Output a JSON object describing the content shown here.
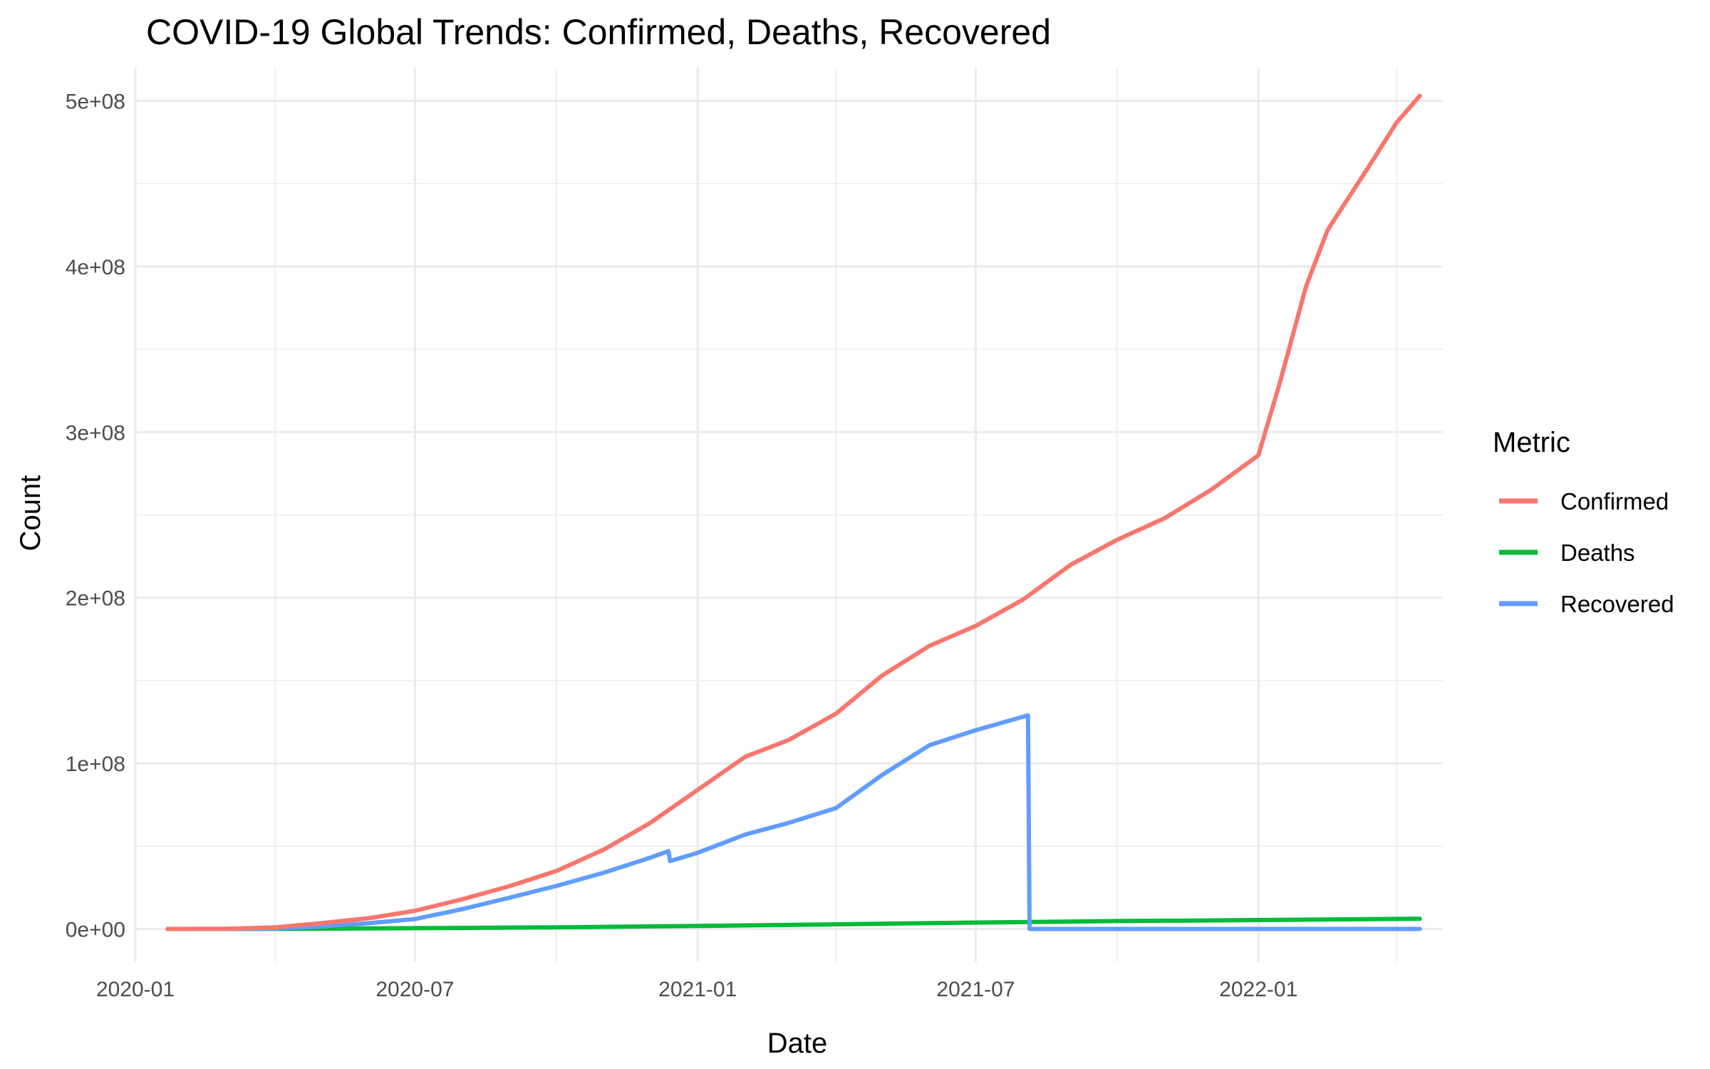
{
  "chart_data": {
    "type": "line",
    "title": "COVID-19 Global Trends: Confirmed, Deaths, Recovered",
    "xlabel": "Date",
    "ylabel": "Count",
    "x_type": "date",
    "xlim": [
      "2020-01-01",
      "2022-05-01"
    ],
    "ylim": [
      -20000000,
      520000000
    ],
    "x_ticks": [
      {
        "value": "2020-01-01",
        "label": "2020-01"
      },
      {
        "value": "2020-07-01",
        "label": "2020-07"
      },
      {
        "value": "2021-01-01",
        "label": "2021-01"
      },
      {
        "value": "2021-07-01",
        "label": "2021-07"
      },
      {
        "value": "2022-01-01",
        "label": "2022-01"
      }
    ],
    "x_minor_ticks": [
      "2020-04-01",
      "2020-10-01",
      "2021-04-01",
      "2021-10-01",
      "2022-04-01"
    ],
    "y_ticks": [
      {
        "value": 0,
        "label": "0e+00"
      },
      {
        "value": 100000000,
        "label": "1e+08"
      },
      {
        "value": 200000000,
        "label": "2e+08"
      },
      {
        "value": 300000000,
        "label": "3e+08"
      },
      {
        "value": 400000000,
        "label": "4e+08"
      },
      {
        "value": 500000000,
        "label": "5e+08"
      }
    ],
    "y_minor_ticks": [
      50000000,
      150000000,
      250000000,
      350000000,
      450000000
    ],
    "grid": true,
    "legend": {
      "title": "Metric",
      "position": "right"
    },
    "series": [
      {
        "name": "Confirmed",
        "color": "#F8766D",
        "points": [
          [
            "2020-01-22",
            0
          ],
          [
            "2020-03-01",
            100000
          ],
          [
            "2020-04-01",
            1000000
          ],
          [
            "2020-05-01",
            3500000
          ],
          [
            "2020-06-01",
            6500000
          ],
          [
            "2020-07-01",
            11000000
          ],
          [
            "2020-08-01",
            18000000
          ],
          [
            "2020-09-01",
            26000000
          ],
          [
            "2020-10-01",
            35000000
          ],
          [
            "2020-11-01",
            48000000
          ],
          [
            "2020-12-01",
            64000000
          ],
          [
            "2021-01-01",
            84000000
          ],
          [
            "2021-02-01",
            104000000
          ],
          [
            "2021-03-01",
            114000000
          ],
          [
            "2021-04-01",
            130000000
          ],
          [
            "2021-05-01",
            153000000
          ],
          [
            "2021-06-01",
            171000000
          ],
          [
            "2021-07-01",
            183000000
          ],
          [
            "2021-08-01",
            199000000
          ],
          [
            "2021-09-01",
            220000000
          ],
          [
            "2021-10-01",
            235000000
          ],
          [
            "2021-11-01",
            248000000
          ],
          [
            "2021-12-01",
            265000000
          ],
          [
            "2022-01-01",
            286000000
          ],
          [
            "2022-01-15",
            330000000
          ],
          [
            "2022-02-01",
            388000000
          ],
          [
            "2022-02-15",
            422000000
          ],
          [
            "2022-03-01",
            442000000
          ],
          [
            "2022-03-15",
            462000000
          ],
          [
            "2022-04-01",
            487000000
          ],
          [
            "2022-04-16",
            503000000
          ]
        ]
      },
      {
        "name": "Deaths",
        "color": "#00BA38",
        "points": [
          [
            "2020-01-22",
            0
          ],
          [
            "2020-04-01",
            50000
          ],
          [
            "2020-07-01",
            500000
          ],
          [
            "2020-10-01",
            1000000
          ],
          [
            "2021-01-01",
            1800000
          ],
          [
            "2021-04-01",
            2800000
          ],
          [
            "2021-07-01",
            3900000
          ],
          [
            "2021-10-01",
            4800000
          ],
          [
            "2022-01-01",
            5400000
          ],
          [
            "2022-04-16",
            6200000
          ]
        ]
      },
      {
        "name": "Recovered",
        "color": "#619CFF",
        "points": [
          [
            "2020-01-22",
            0
          ],
          [
            "2020-03-01",
            50000
          ],
          [
            "2020-04-01",
            300000
          ],
          [
            "2020-05-01",
            1500000
          ],
          [
            "2020-06-01",
            3500000
          ],
          [
            "2020-07-01",
            6000000
          ],
          [
            "2020-08-01",
            12000000
          ],
          [
            "2020-09-01",
            19000000
          ],
          [
            "2020-10-01",
            26000000
          ],
          [
            "2020-11-01",
            34000000
          ],
          [
            "2020-12-01",
            43000000
          ],
          [
            "2020-12-13",
            47000000
          ],
          [
            "2020-12-14",
            41000000
          ],
          [
            "2021-01-01",
            46000000
          ],
          [
            "2021-02-01",
            57000000
          ],
          [
            "2021-03-01",
            64000000
          ],
          [
            "2021-04-01",
            73000000
          ],
          [
            "2021-05-01",
            93000000
          ],
          [
            "2021-06-01",
            111000000
          ],
          [
            "2021-07-01",
            120000000
          ],
          [
            "2021-08-04",
            129000000
          ],
          [
            "2021-08-05",
            0
          ],
          [
            "2022-04-16",
            0
          ]
        ]
      }
    ]
  }
}
